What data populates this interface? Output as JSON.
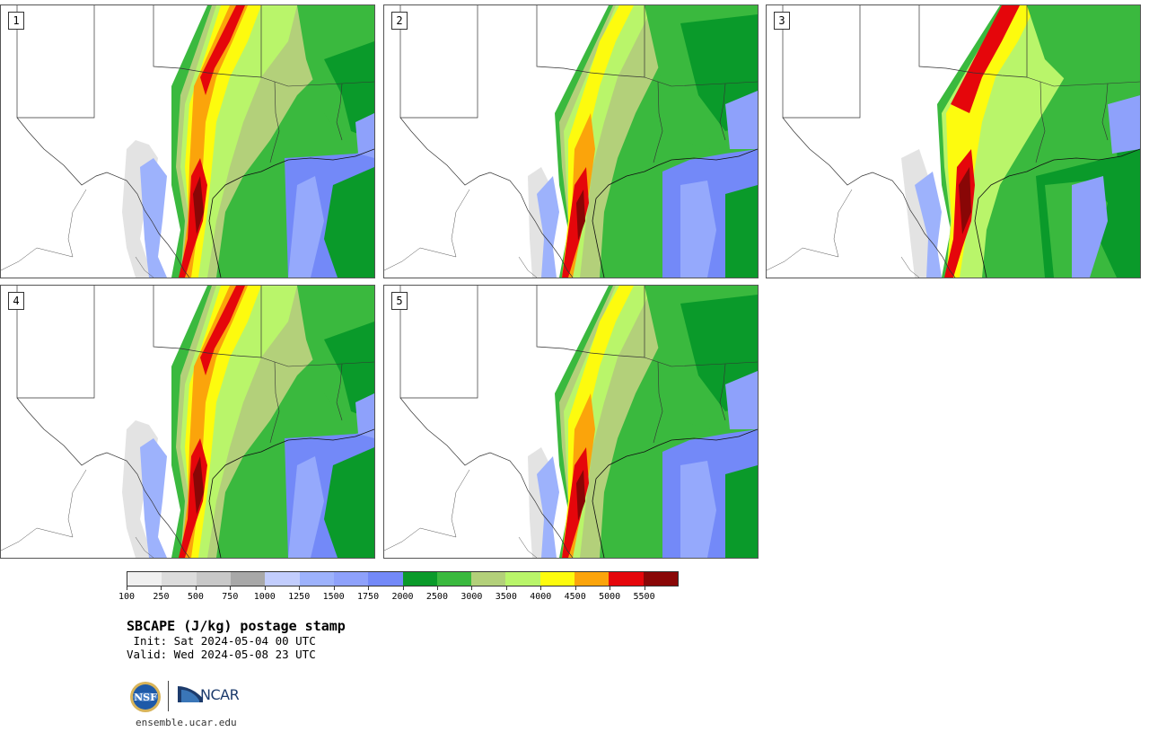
{
  "panels": [
    {
      "label": "1"
    },
    {
      "label": "2"
    },
    {
      "label": "3"
    },
    {
      "label": "4"
    },
    {
      "label": "5"
    }
  ],
  "colorbar": {
    "colors": [
      "#f0f0f0",
      "#dcdcdc",
      "#c8c8c8",
      "#a8a8a8",
      "#c2cdfd",
      "#9db2fc",
      "#8ea1fb",
      "#7389f8",
      "#0a9a2a",
      "#3ab93e",
      "#b3d07a",
      "#b9f56a",
      "#fdfb0e",
      "#fba40b",
      "#e5060b",
      "#890606"
    ],
    "ticks": [
      "100",
      "250",
      "500",
      "750",
      "1000",
      "1250",
      "1500",
      "1750",
      "2000",
      "2500",
      "3000",
      "3500",
      "4000",
      "4500",
      "5000",
      "5500"
    ]
  },
  "title": "SBCAPE (J/kg) postage stamp",
  "init": " Init: Sat 2024-05-04 00 UTC",
  "valid": "Valid: Wed 2024-05-08 23 UTC",
  "logos": {
    "nsf": "NSF",
    "ncar": "NCAR"
  },
  "website": "ensemble.ucar.edu"
}
